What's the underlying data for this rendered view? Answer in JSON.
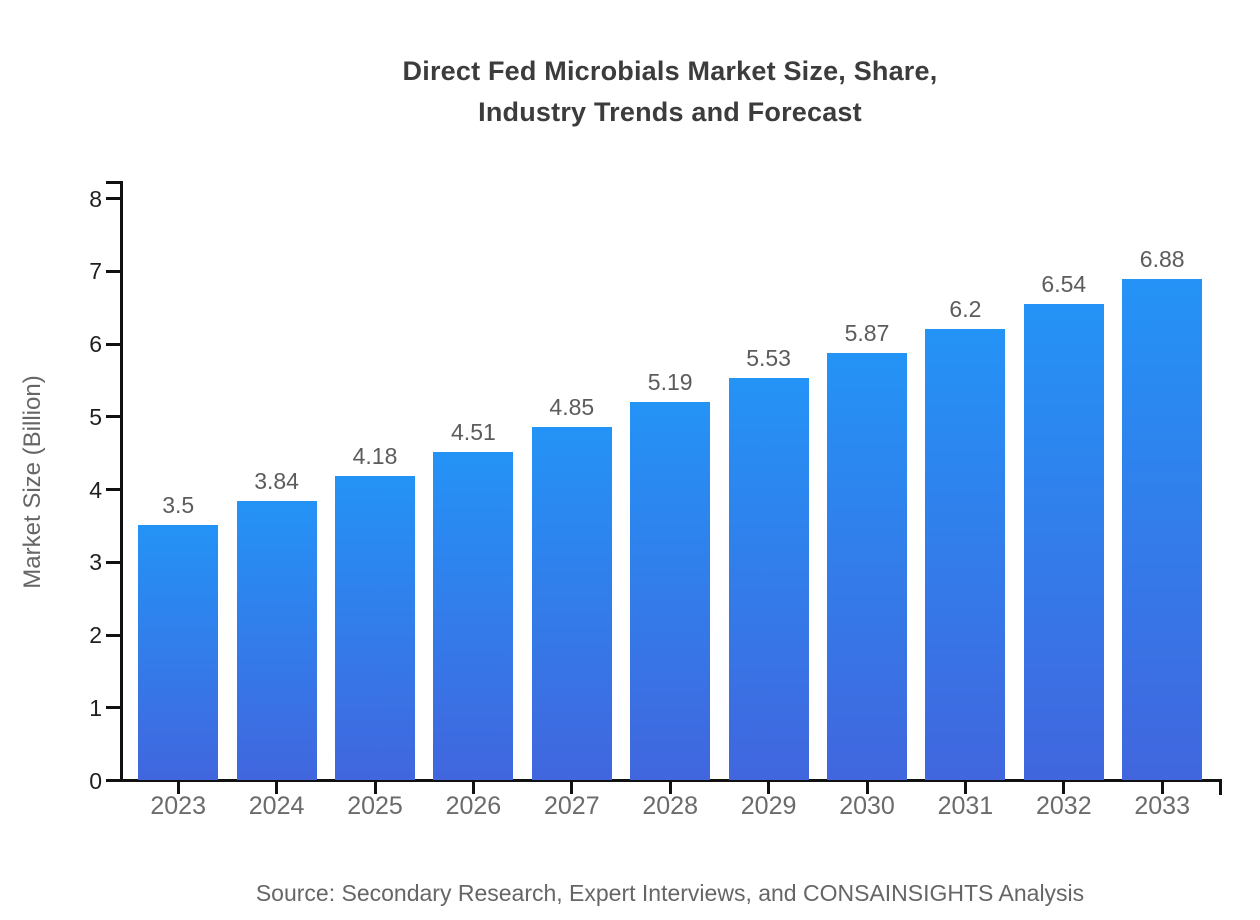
{
  "page": {
    "background": "#ffffff"
  },
  "title": {
    "line1": "Direct Fed Microbials Market Size, Share,",
    "line2": "Industry Trends and Forecast"
  },
  "source_note": "Source: Secondary Research, Expert Interviews, and CONSAINSIGHTS Analysis",
  "chart_data": {
    "type": "bar",
    "title": "Direct Fed Microbials Market Size, Share, Industry Trends and Forecast",
    "categories": [
      "2023",
      "2024",
      "2025",
      "2026",
      "2027",
      "2028",
      "2029",
      "2030",
      "2031",
      "2032",
      "2033"
    ],
    "values": [
      3.5,
      3.84,
      4.18,
      4.51,
      4.85,
      5.19,
      5.53,
      5.87,
      6.2,
      6.54,
      6.88
    ],
    "value_labels": [
      "3.5",
      "3.84",
      "4.18",
      "4.51",
      "4.85",
      "5.19",
      "5.53",
      "5.87",
      "6.2",
      "6.54",
      "6.88"
    ],
    "xlabel": "",
    "ylabel": "Market Size (Billion)",
    "ylim": [
      0,
      8
    ],
    "y_ticks": [
      0,
      1,
      2,
      3,
      4,
      5,
      6,
      7,
      8
    ],
    "grid": false,
    "legend": "none",
    "colors": {
      "bar_gradient_top": "#2493f6",
      "bar_gradient_bottom": "#4166de",
      "axis": "#111111",
      "y_tick_label": "#1f1f1f",
      "category_label": "#6b6b6b",
      "value_label": "#5c5c5c",
      "title": "#3c3c3c",
      "muted_text": "#666666"
    }
  }
}
